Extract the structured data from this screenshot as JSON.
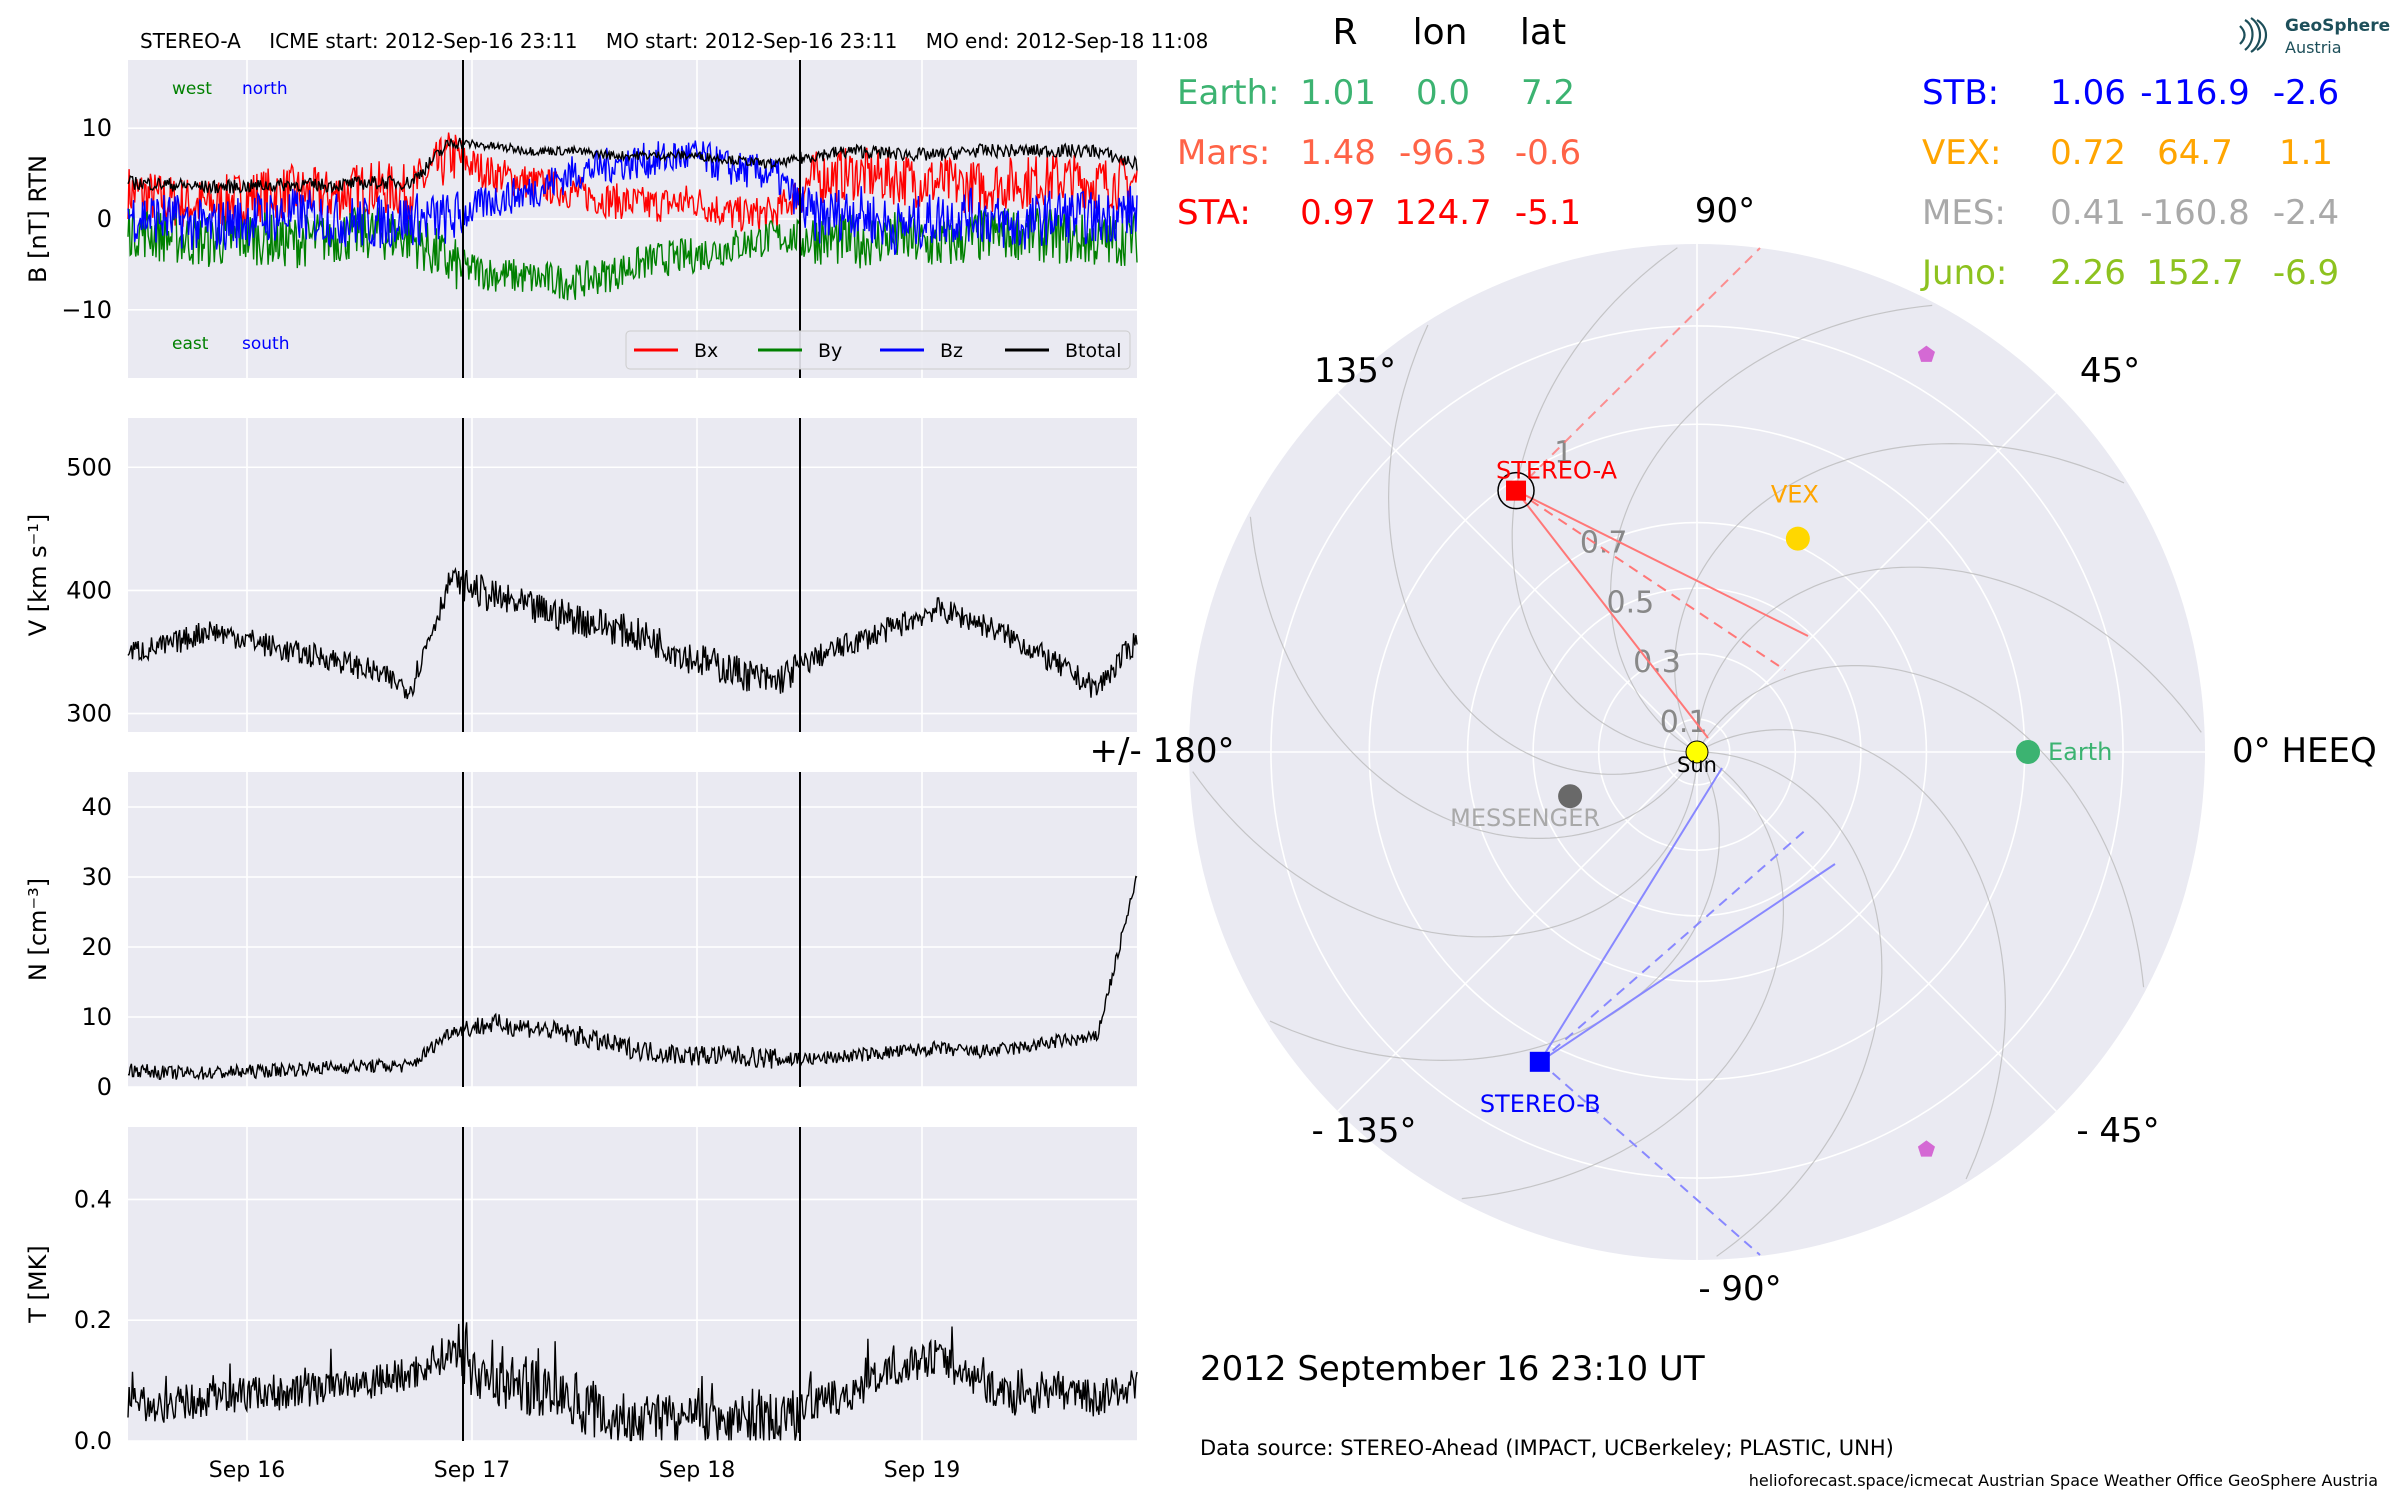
{
  "header": {
    "spacecraft": "STEREO-A",
    "icme_start": "ICME start: 2012-Sep-16 23:11",
    "mo_start": "MO start: 2012-Sep-16 23:11",
    "mo_end": "MO end: 2012-Sep-18 11:08"
  },
  "logo": {
    "line1": "GeoSphere",
    "line2": "Austria"
  },
  "date_label": "2012 September 16  23:10 UT",
  "data_source": "Data source: STEREO-Ahead (IMPACT, UCBerkeley; PLASTIC, UNH)",
  "credits": "helioforecast.space/icmecat   Austrian Space Weather Office   GeoSphere Austria",
  "position_table": {
    "headers": [
      "R",
      "lon",
      "lat"
    ],
    "left": [
      {
        "name": "Earth:",
        "r": "1.01",
        "lon": "0.0",
        "lat": "7.2",
        "color": "#3cb371"
      },
      {
        "name": "Mars:",
        "r": "1.48",
        "lon": "-96.3",
        "lat": "-0.6",
        "color": "#ff6347"
      },
      {
        "name": "STA:",
        "r": "0.97",
        "lon": "124.7",
        "lat": "-5.1",
        "color": "#ff0000"
      }
    ],
    "right": [
      {
        "name": "STB:",
        "r": "1.06",
        "lon": "-116.9",
        "lat": "-2.6",
        "color": "#0000ff"
      },
      {
        "name": "VEX:",
        "r": "0.72",
        "lon": "64.7",
        "lat": "1.1",
        "color": "#ffa500"
      },
      {
        "name": "MES:",
        "r": "0.41",
        "lon": "-160.8",
        "lat": "-2.4",
        "color": "#a9a9a9"
      },
      {
        "name": "Juno:",
        "r": "2.26",
        "lon": "152.7",
        "lat": "-6.9",
        "color": "#8dc21f"
      }
    ]
  },
  "chart_data": [
    {
      "type": "line",
      "panel": "magnetic field",
      "ylabel": "B [nT] RTN",
      "ylim": [
        -17.5,
        17.5
      ],
      "yticks": [
        10,
        0,
        -10
      ],
      "ytick_labels": [
        "10",
        "0",
        "−10"
      ],
      "corner_labels": {
        "west": "west",
        "north": "north",
        "east": "east",
        "south": "south"
      },
      "legend_position": "lower-right",
      "series": [
        {
          "name": "Bx",
          "color": "#ff0000",
          "values": [
            3.0,
            2.0,
            1.5,
            2.5,
            3.0,
            2.5,
            3.5,
            3.0,
            7.0,
            5.0,
            4.0,
            3.0,
            2.0,
            1.5,
            2.0,
            0.5,
            0.5,
            4.5,
            5.0,
            4.5,
            4.0,
            3.5,
            4.0,
            4.5,
            4.0,
            4.0
          ]
        },
        {
          "name": "By",
          "color": "#008000",
          "values": [
            -1.0,
            -2.0,
            -2.5,
            -2.0,
            -2.5,
            -2.0,
            -1.5,
            -2.0,
            -5.0,
            -6.0,
            -6.5,
            -7.0,
            -6.0,
            -4.5,
            -4.0,
            -3.0,
            -2.0,
            -2.0,
            -2.5,
            -2.0,
            -3.0,
            -2.0,
            -1.5,
            -2.0,
            -2.5,
            -2.0
          ]
        },
        {
          "name": "Bz",
          "color": "#0000ff",
          "values": [
            0.5,
            0.0,
            -1.0,
            0.0,
            0.5,
            0.0,
            -0.5,
            0.0,
            0.0,
            2.0,
            3.0,
            5.0,
            6.0,
            6.5,
            7.0,
            5.5,
            5.0,
            0.0,
            1.0,
            -1.0,
            0.0,
            0.5,
            -1.0,
            0.5,
            0.0,
            1.0
          ]
        },
        {
          "name": "Btotal",
          "color": "#000000",
          "values": [
            4.0,
            3.8,
            3.5,
            3.6,
            3.8,
            3.7,
            4.0,
            4.0,
            8.5,
            8.0,
            7.5,
            7.5,
            7.0,
            7.0,
            7.0,
            6.5,
            6.0,
            7.0,
            7.5,
            7.2,
            7.0,
            7.5,
            7.5,
            7.5,
            7.5,
            6.0
          ]
        }
      ]
    },
    {
      "type": "line",
      "panel": "velocity",
      "ylabel": "V [km s⁻¹]",
      "ylim": [
        285,
        540
      ],
      "yticks": [
        500,
        400,
        300
      ],
      "series": [
        {
          "name": "V",
          "color": "#000000",
          "values": [
            350,
            355,
            368,
            360,
            350,
            345,
            335,
            320,
            410,
            395,
            385,
            378,
            370,
            360,
            345,
            335,
            325,
            345,
            358,
            370,
            385,
            375,
            360,
            340,
            320,
            360
          ]
        }
      ]
    },
    {
      "type": "line",
      "panel": "density",
      "ylabel": "N [cm⁻³]",
      "ylim": [
        0,
        45
      ],
      "yticks": [
        40,
        30,
        20,
        10,
        0
      ],
      "series": [
        {
          "name": "N",
          "color": "#000000",
          "values": [
            2.5,
            2.0,
            2.0,
            2.2,
            2.5,
            2.8,
            3.0,
            3.0,
            8.0,
            9.0,
            8.5,
            7.5,
            6.0,
            5.0,
            4.5,
            4.5,
            4.0,
            4.0,
            4.5,
            5.0,
            5.5,
            5.0,
            5.5,
            6.5,
            7.0,
            30.0
          ]
        }
      ]
    },
    {
      "type": "line",
      "panel": "temperature",
      "ylabel": "T [MK]",
      "ylim": [
        0,
        0.52
      ],
      "yticks": [
        0.4,
        0.2,
        0.0
      ],
      "ytick_labels": [
        "0.4",
        "0.2",
        "0.0"
      ],
      "series": [
        {
          "name": "T",
          "color": "#000000",
          "values": [
            0.06,
            0.06,
            0.07,
            0.08,
            0.08,
            0.09,
            0.1,
            0.11,
            0.15,
            0.1,
            0.09,
            0.07,
            0.04,
            0.03,
            0.03,
            0.03,
            0.03,
            0.06,
            0.08,
            0.12,
            0.14,
            0.1,
            0.07,
            0.08,
            0.07,
            0.09
          ]
        }
      ]
    },
    {
      "type": "scatter",
      "panel": "heliospheric positions (polar, HEEQ)",
      "radial_ticks": [
        0.1,
        0.3,
        0.5,
        0.7,
        1.0
      ],
      "angle_labels": {
        "a0": "0° HEEQ",
        "a45": "45°",
        "a90": "90°",
        "a135": "135°",
        "a180": "+/- 180°",
        "am135": "- 135°",
        "am90": "- 90°",
        "am45": "- 45°"
      },
      "bodies": [
        {
          "name": "Sun",
          "r": 0.0,
          "lon": 0.0,
          "color": "#ffff00"
        },
        {
          "name": "Earth",
          "r": 1.01,
          "lon": 0.0,
          "color": "#3cb371"
        },
        {
          "name": "VEX",
          "r": 0.72,
          "lon": 64.7,
          "color": "#ffd700"
        },
        {
          "name": "MESSENGER",
          "r": 0.41,
          "lon": -160.8,
          "color": "#696969"
        },
        {
          "name": "STEREO-A",
          "r": 0.97,
          "lon": 124.7,
          "color": "#ff0000"
        },
        {
          "name": "STEREO-B",
          "r": 1.06,
          "lon": -116.9,
          "color": "#0000ff"
        },
        {
          "name": "",
          "r": 1.4,
          "lon": 60.0,
          "color": "#d469d4"
        },
        {
          "name": "",
          "r": 1.4,
          "lon": -60.0,
          "color": "#d469d4"
        }
      ]
    }
  ],
  "x_axis": {
    "ticks": [
      "Sep 16",
      "Sep 17",
      "Sep 18",
      "Sep 19"
    ]
  }
}
